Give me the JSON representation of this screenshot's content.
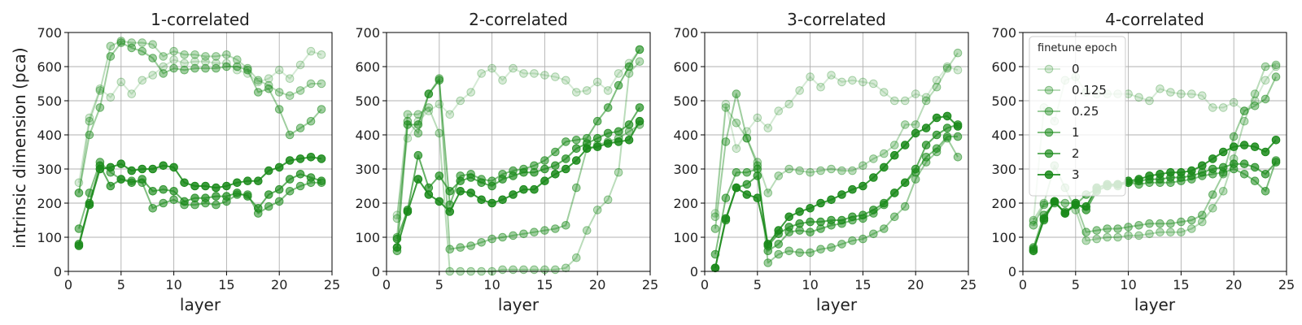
{
  "figure": {
    "ylabel": "intrinsic dimension (pca)",
    "xlabel": "layer",
    "colors": {
      "line": "#1a8a1a"
    },
    "alphas": [
      0.18,
      0.3,
      0.42,
      0.55,
      0.68,
      0.85
    ],
    "legend": {
      "title": "finetune epoch",
      "entries": [
        "0",
        "0.125",
        "0.25",
        "1",
        "2",
        "3"
      ],
      "panel": 3,
      "placement": "upper-left"
    }
  },
  "chart_data": [
    {
      "type": "line",
      "title": "1-correlated",
      "xlabel": "layer",
      "ylabel": "intrinsic dimension (pca)",
      "xlim": [
        0,
        25
      ],
      "ylim": [
        0,
        700
      ],
      "xticks": [
        0,
        5,
        10,
        15,
        20,
        25
      ],
      "yticks": [
        0,
        100,
        200,
        300,
        400,
        500,
        600,
        700
      ],
      "grid": true,
      "x": [
        1,
        2,
        3,
        4,
        5,
        6,
        7,
        8,
        9,
        10,
        11,
        12,
        13,
        14,
        15,
        16,
        17,
        18,
        19,
        20,
        21,
        22,
        23,
        24
      ],
      "series": [
        {
          "name": "0",
          "values": [
            260,
            450,
            535,
            510,
            555,
            520,
            560,
            575,
            600,
            620,
            610,
            615,
            615,
            610,
            610,
            590,
            580,
            555,
            565,
            590,
            565,
            605,
            645,
            635
          ]
        },
        {
          "name": "0.125",
          "values": [
            230,
            440,
            530,
            660,
            675,
            670,
            670,
            665,
            630,
            645,
            635,
            635,
            630,
            630,
            635,
            620,
            595,
            560,
            545,
            525,
            515,
            530,
            550,
            550
          ]
        },
        {
          "name": "0.25",
          "values": [
            230,
            400,
            480,
            630,
            670,
            655,
            645,
            625,
            580,
            595,
            590,
            595,
            595,
            595,
            600,
            600,
            590,
            525,
            535,
            475,
            400,
            420,
            440,
            475
          ]
        },
        {
          "name": "1",
          "values": [
            125,
            230,
            320,
            290,
            270,
            265,
            260,
            185,
            200,
            210,
            195,
            195,
            200,
            195,
            205,
            225,
            225,
            170,
            190,
            205,
            235,
            250,
            260,
            260
          ]
        },
        {
          "name": "2",
          "values": [
            80,
            200,
            310,
            250,
            270,
            260,
            270,
            235,
            240,
            235,
            205,
            215,
            215,
            220,
            220,
            230,
            220,
            185,
            225,
            240,
            270,
            285,
            275,
            265
          ]
        },
        {
          "name": "3",
          "values": [
            75,
            195,
            300,
            305,
            315,
            295,
            300,
            300,
            310,
            305,
            260,
            250,
            250,
            245,
            250,
            260,
            265,
            265,
            295,
            305,
            325,
            330,
            335,
            330
          ]
        }
      ]
    },
    {
      "type": "line",
      "title": "2-correlated",
      "xlabel": "layer",
      "ylabel": "",
      "xlim": [
        0,
        25
      ],
      "ylim": [
        0,
        700
      ],
      "xticks": [
        0,
        5,
        10,
        15,
        20,
        25
      ],
      "yticks": [
        0,
        100,
        200,
        300,
        400,
        500,
        600,
        700
      ],
      "grid": true,
      "x": [
        1,
        2,
        3,
        4,
        5,
        6,
        7,
        8,
        9,
        10,
        11,
        12,
        13,
        14,
        15,
        16,
        17,
        18,
        19,
        20,
        21,
        22,
        23,
        24
      ],
      "series": [
        {
          "name": "0",
          "values": [
            165,
            390,
            440,
            470,
            490,
            460,
            500,
            525,
            580,
            595,
            560,
            595,
            580,
            580,
            575,
            570,
            560,
            525,
            530,
            555,
            530,
            580,
            610,
            650
          ]
        },
        {
          "name": "0.125",
          "values": [
            155,
            460,
            460,
            480,
            405,
            0,
            0,
            0,
            0,
            0,
            5,
            5,
            5,
            5,
            5,
            5,
            10,
            40,
            120,
            180,
            210,
            290,
            580,
            615
          ]
        },
        {
          "name": "0.25",
          "values": [
            100,
            440,
            405,
            520,
            565,
            65,
            70,
            75,
            85,
            95,
            100,
            105,
            110,
            115,
            120,
            125,
            135,
            245,
            360,
            370,
            380,
            390,
            410,
            430
          ]
        },
        {
          "name": "1",
          "values": [
            60,
            430,
            430,
            520,
            560,
            195,
            280,
            285,
            270,
            265,
            285,
            295,
            300,
            310,
            325,
            350,
            380,
            385,
            390,
            440,
            480,
            545,
            600,
            650
          ]
        },
        {
          "name": "2",
          "values": [
            95,
            180,
            340,
            245,
            280,
            235,
            265,
            275,
            260,
            250,
            270,
            280,
            290,
            290,
            300,
            310,
            330,
            360,
            375,
            390,
            405,
            410,
            430,
            480
          ]
        },
        {
          "name": "3",
          "values": [
            70,
            175,
            270,
            225,
            205,
            175,
            235,
            230,
            210,
            200,
            210,
            225,
            240,
            240,
            265,
            285,
            300,
            325,
            360,
            365,
            375,
            380,
            385,
            440
          ]
        }
      ]
    },
    {
      "type": "line",
      "title": "3-correlated",
      "xlabel": "layer",
      "ylabel": "",
      "xlim": [
        0,
        25
      ],
      "ylim": [
        0,
        700
      ],
      "xticks": [
        0,
        5,
        10,
        15,
        20,
        25
      ],
      "yticks": [
        0,
        100,
        200,
        300,
        400,
        500,
        600,
        700
      ],
      "grid": true,
      "x": [
        1,
        2,
        3,
        4,
        5,
        6,
        7,
        8,
        9,
        10,
        11,
        12,
        13,
        14,
        15,
        16,
        17,
        18,
        19,
        20,
        21,
        22,
        23,
        24
      ],
      "series": [
        {
          "name": "0",
          "values": [
            170,
            490,
            360,
            410,
            450,
            420,
            470,
            490,
            530,
            570,
            540,
            575,
            555,
            560,
            555,
            550,
            525,
            500,
            500,
            520,
            510,
            560,
            600,
            590
          ]
        },
        {
          "name": "0.125",
          "values": [
            160,
            480,
            435,
            390,
            320,
            230,
            280,
            300,
            295,
            290,
            295,
            300,
            295,
            295,
            310,
            330,
            345,
            370,
            430,
            430,
            500,
            540,
            595,
            640
          ]
        },
        {
          "name": "0.25",
          "values": [
            125,
            380,
            520,
            390,
            310,
            25,
            50,
            60,
            55,
            55,
            65,
            70,
            80,
            90,
            95,
            110,
            125,
            160,
            190,
            270,
            320,
            350,
            390,
            335
          ]
        },
        {
          "name": "1",
          "values": [
            50,
            215,
            290,
            290,
            300,
            60,
            80,
            115,
            120,
            115,
            125,
            135,
            140,
            150,
            155,
            170,
            195,
            230,
            260,
            290,
            335,
            360,
            395,
            395
          ]
        },
        {
          "name": "2",
          "values": [
            10,
            150,
            245,
            255,
            280,
            75,
            110,
            130,
            140,
            145,
            145,
            150,
            150,
            160,
            165,
            180,
            200,
            230,
            260,
            300,
            370,
            400,
            420,
            430
          ]
        },
        {
          "name": "3",
          "values": [
            10,
            155,
            245,
            225,
            215,
            80,
            120,
            160,
            175,
            185,
            200,
            210,
            225,
            240,
            250,
            275,
            305,
            340,
            370,
            405,
            420,
            450,
            455,
            425
          ]
        }
      ]
    },
    {
      "type": "line",
      "title": "4-correlated",
      "xlabel": "layer",
      "ylabel": "",
      "xlim": [
        0,
        25
      ],
      "ylim": [
        0,
        700
      ],
      "xticks": [
        0,
        5,
        10,
        15,
        20,
        25
      ],
      "yticks": [
        0,
        100,
        200,
        300,
        400,
        500,
        600,
        700
      ],
      "grid": true,
      "x": [
        1,
        2,
        3,
        4,
        5,
        6,
        7,
        8,
        9,
        10,
        11,
        12,
        13,
        14,
        15,
        16,
        17,
        18,
        19,
        20,
        21,
        22,
        23,
        24
      ],
      "series": [
        {
          "name": "0",
          "values": [
            145,
            480,
            440,
            560,
            570,
            525,
            520,
            520,
            520,
            520,
            510,
            500,
            535,
            525,
            520,
            520,
            515,
            480,
            480,
            495,
            470,
            500,
            560,
            600
          ]
        },
        {
          "name": "0.125",
          "values": [
            150,
            200,
            310,
            245,
            180,
            90,
            95,
            100,
            100,
            105,
            105,
            110,
            115,
            115,
            115,
            125,
            145,
            185,
            235,
            330,
            440,
            520,
            600,
            605
          ]
        },
        {
          "name": "0.25",
          "values": [
            135,
            195,
            205,
            200,
            200,
            115,
            120,
            125,
            125,
            130,
            135,
            140,
            140,
            140,
            145,
            150,
            165,
            225,
            285,
            395,
            470,
            485,
            505,
            570
          ]
        },
        {
          "name": "1",
          "values": [
            70,
            165,
            200,
            175,
            195,
            225,
            240,
            250,
            250,
            260,
            255,
            260,
            260,
            260,
            265,
            270,
            280,
            285,
            290,
            300,
            285,
            265,
            235,
            325
          ]
        },
        {
          "name": "2",
          "values": [
            65,
            150,
            205,
            170,
            200,
            180,
            235,
            250,
            255,
            260,
            265,
            270,
            270,
            275,
            275,
            280,
            290,
            300,
            305,
            315,
            315,
            305,
            285,
            320
          ]
        },
        {
          "name": "3",
          "values": [
            60,
            155,
            205,
            170,
            195,
            190,
            245,
            255,
            255,
            265,
            270,
            280,
            285,
            290,
            290,
            295,
            310,
            330,
            350,
            365,
            370,
            365,
            350,
            385
          ]
        }
      ]
    }
  ]
}
